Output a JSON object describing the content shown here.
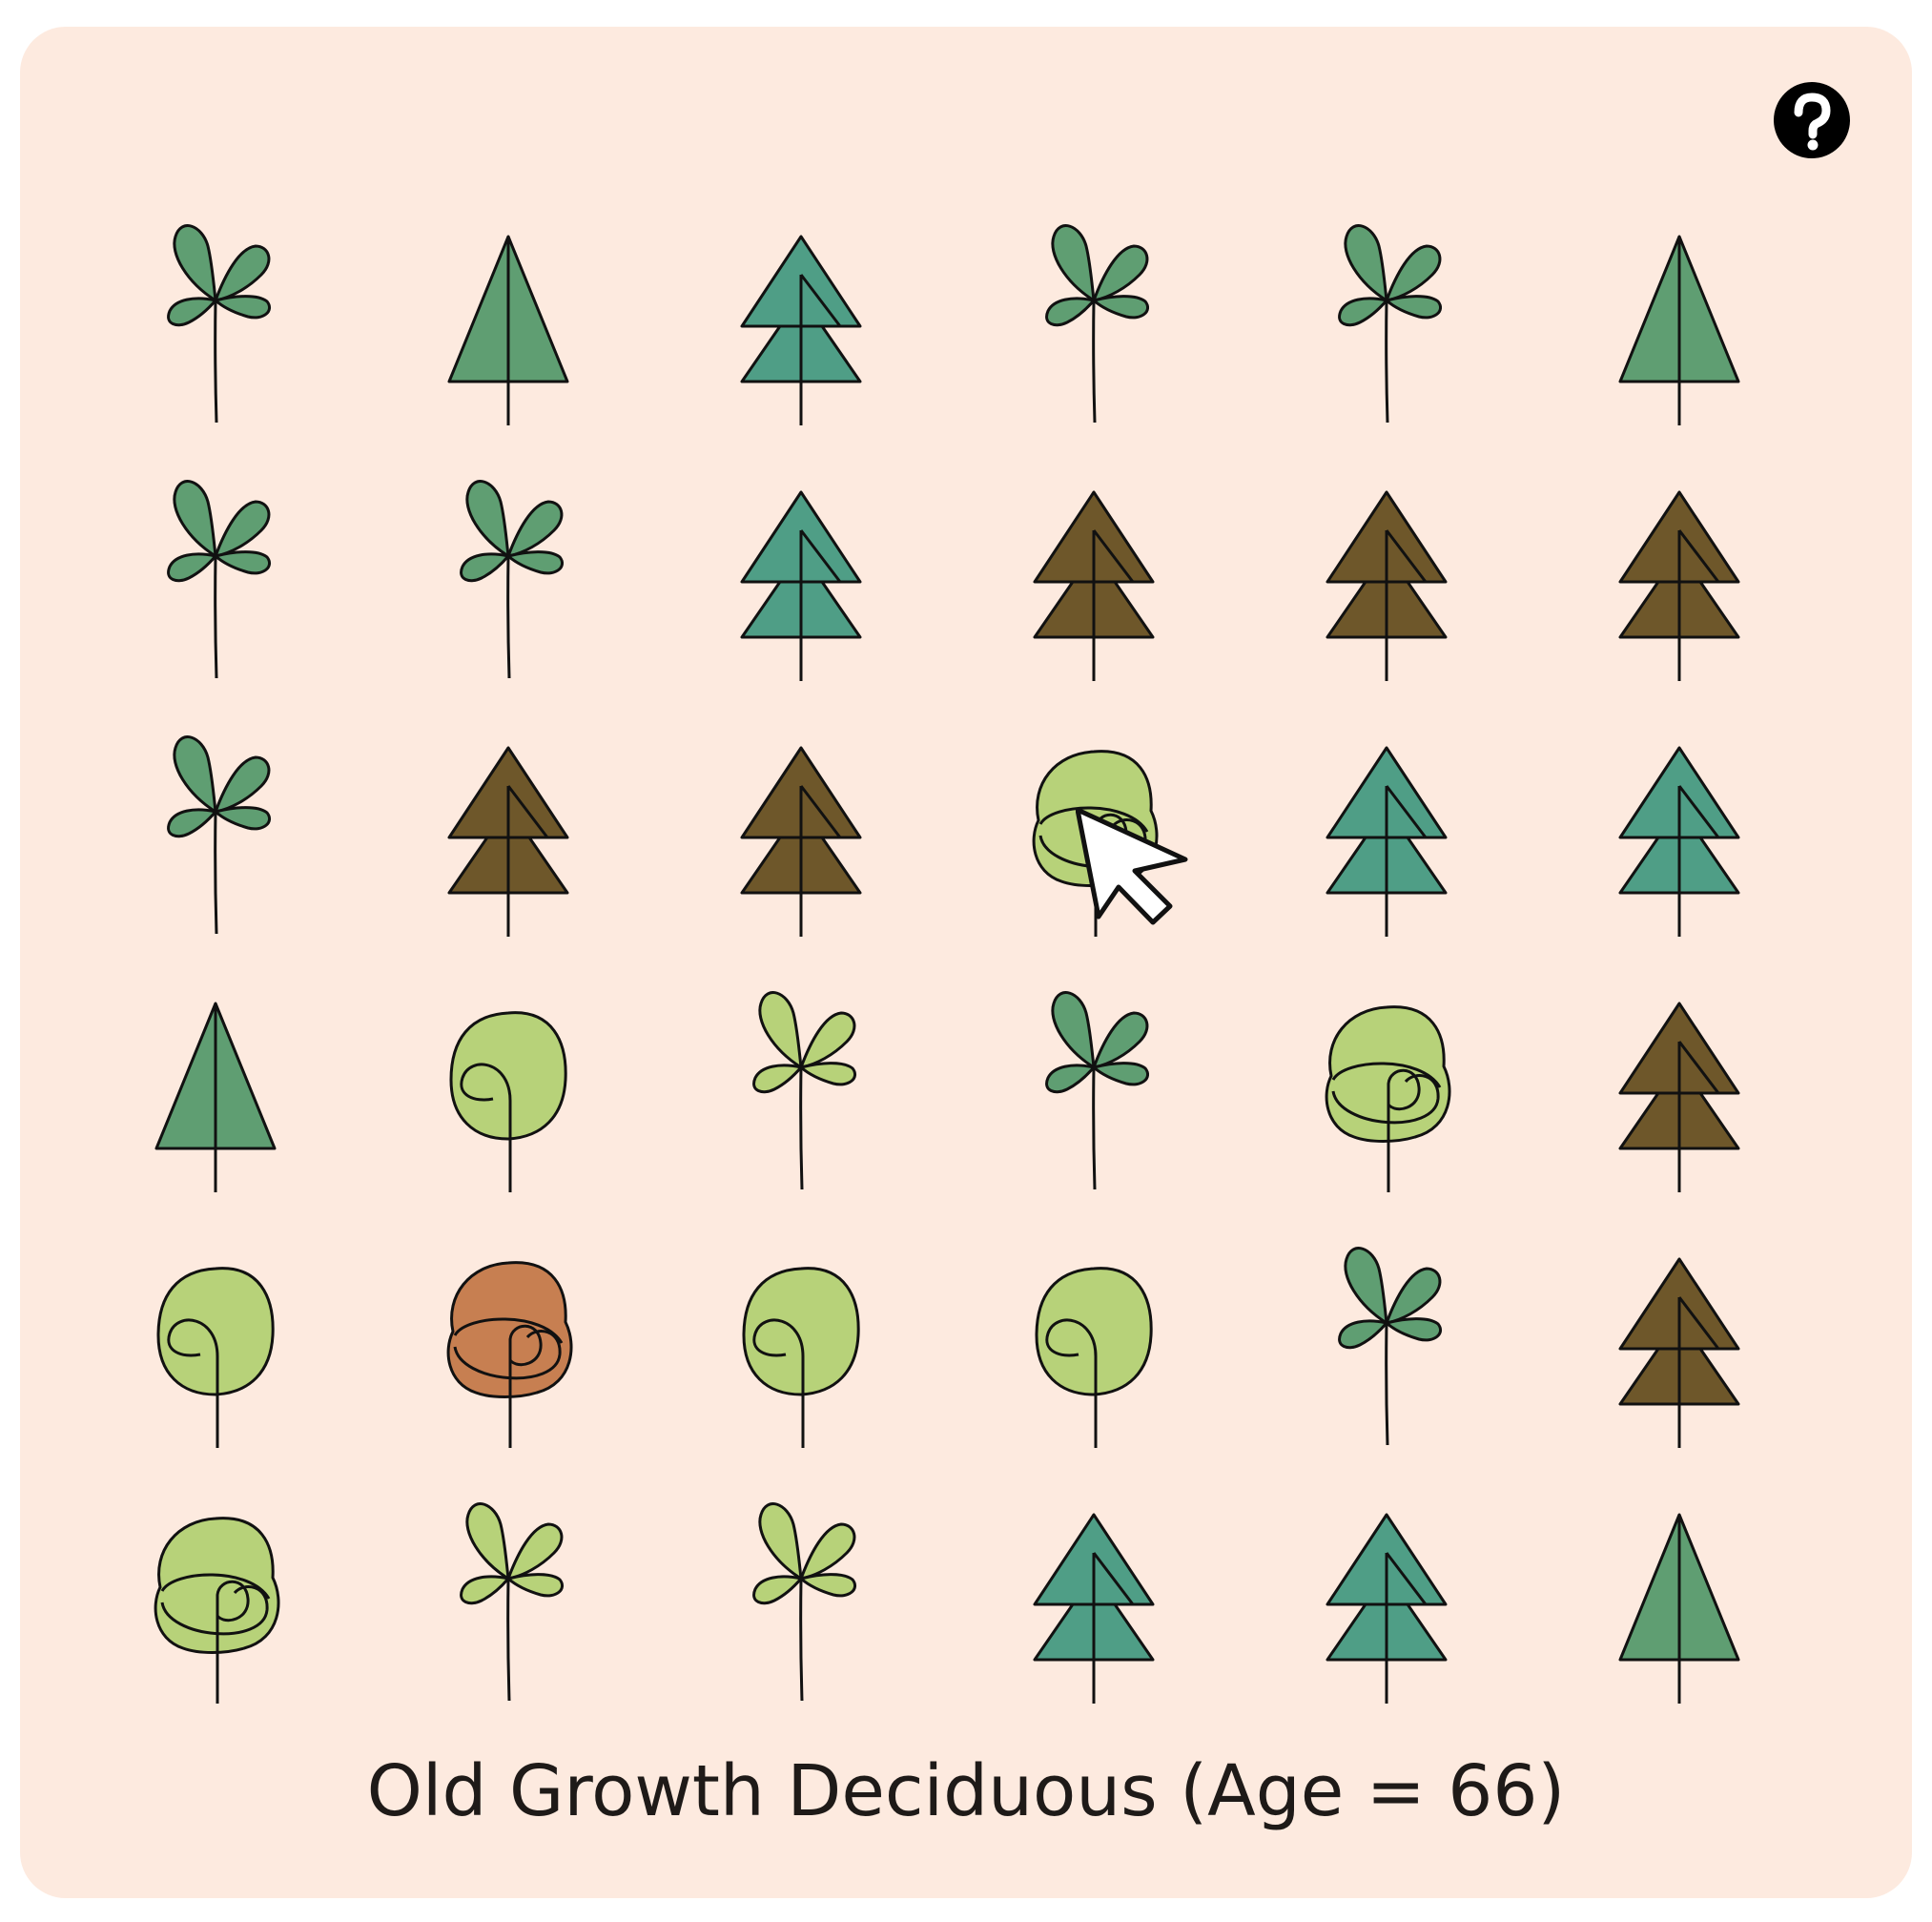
{
  "status_label": "Old Growth Deciduous (Age = 66)",
  "icons": {
    "help": "help-question-icon",
    "cursor": "mouse-pointer-icon"
  },
  "colors": {
    "panel_background": "#fdeadf",
    "seedling_dark": "#5f9e72",
    "seedling_light": "#b7d279",
    "pine_green": "#5f9e72",
    "spruce_teal": "#4f9e86",
    "dead_conifer": "#6e572a",
    "deciduous_green": "#b7d279",
    "deciduous_autumn": "#c77f51",
    "outline": "#111111"
  },
  "grid": {
    "rows": 6,
    "columns": 6,
    "cells": [
      [
        {
          "type": "seedling",
          "color": "#5f9e72"
        },
        {
          "type": "pine",
          "color": "#5f9e72"
        },
        {
          "type": "spruce",
          "color": "#4f9e86"
        },
        {
          "type": "seedling",
          "color": "#5f9e72"
        },
        {
          "type": "seedling",
          "color": "#5f9e72"
        },
        {
          "type": "pine",
          "color": "#5f9e72"
        }
      ],
      [
        {
          "type": "seedling",
          "color": "#5f9e72"
        },
        {
          "type": "seedling",
          "color": "#5f9e72"
        },
        {
          "type": "spruce",
          "color": "#4f9e86"
        },
        {
          "type": "spruce",
          "color": "#6e572a"
        },
        {
          "type": "spruce",
          "color": "#6e572a"
        },
        {
          "type": "spruce",
          "color": "#6e572a"
        }
      ],
      [
        {
          "type": "seedling",
          "color": "#5f9e72"
        },
        {
          "type": "spruce",
          "color": "#6e572a"
        },
        {
          "type": "spruce",
          "color": "#6e572a"
        },
        {
          "type": "deciduous-old",
          "color": "#b7d279"
        },
        {
          "type": "spruce",
          "color": "#4f9e86"
        },
        {
          "type": "spruce",
          "color": "#4f9e86"
        }
      ],
      [
        {
          "type": "pine",
          "color": "#5f9e72"
        },
        {
          "type": "deciduous-young",
          "color": "#b7d279"
        },
        {
          "type": "seedling",
          "color": "#b7d279"
        },
        {
          "type": "seedling",
          "color": "#5f9e72"
        },
        {
          "type": "deciduous-old",
          "color": "#b7d279"
        },
        {
          "type": "spruce",
          "color": "#6e572a"
        }
      ],
      [
        {
          "type": "deciduous-young",
          "color": "#b7d279"
        },
        {
          "type": "deciduous-old",
          "color": "#c77f51"
        },
        {
          "type": "deciduous-young",
          "color": "#b7d279"
        },
        {
          "type": "deciduous-young",
          "color": "#b7d279"
        },
        {
          "type": "seedling",
          "color": "#5f9e72"
        },
        {
          "type": "spruce",
          "color": "#6e572a"
        }
      ],
      [
        {
          "type": "deciduous-old",
          "color": "#b7d279"
        },
        {
          "type": "seedling",
          "color": "#b7d279"
        },
        {
          "type": "seedling",
          "color": "#b7d279"
        },
        {
          "type": "spruce",
          "color": "#4f9e86"
        },
        {
          "type": "spruce",
          "color": "#4f9e86"
        },
        {
          "type": "pine",
          "color": "#5f9e72"
        }
      ]
    ]
  }
}
